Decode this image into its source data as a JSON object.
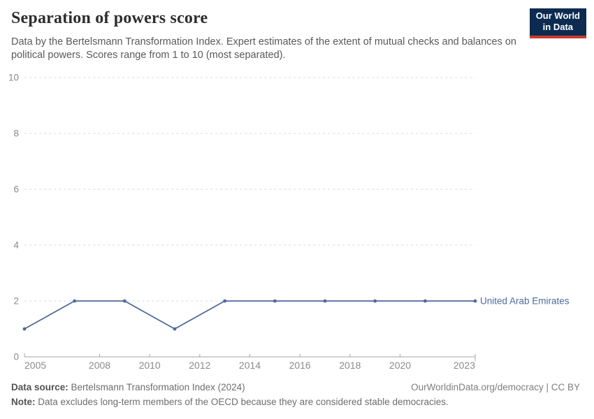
{
  "header": {
    "title": "Separation of powers score",
    "subtitle": "Data by the Bertelsmann Transformation Index. Expert estimates of the extent of mutual checks and balances on political powers. Scores range from 1 to 10 (most separated).",
    "logo": {
      "line1": "Our World",
      "line2": "in Data",
      "bg_color": "#0d2b50",
      "accent_color": "#c93c2d"
    }
  },
  "chart_data": {
    "type": "line",
    "title": "Separation of powers score",
    "x": [
      2005,
      2007,
      2009,
      2011,
      2013,
      2015,
      2017,
      2019,
      2021,
      2023
    ],
    "series": [
      {
        "name": "United Arab Emirates",
        "color": "#4c6a9c",
        "values": [
          1,
          2,
          2,
          1,
          2,
          2,
          2,
          2,
          2,
          2
        ]
      }
    ],
    "xlim": [
      2005,
      2023
    ],
    "ylim": [
      0,
      10
    ],
    "yticks": [
      0,
      2,
      4,
      6,
      8,
      10
    ],
    "xticks": [
      2005,
      2008,
      2010,
      2012,
      2014,
      2016,
      2018,
      2020,
      2023
    ],
    "grid": "horizontal dashed",
    "legend_position": "end of line",
    "axis_color": "#a3a3a3",
    "grid_color": "#dcdcdc",
    "tick_label_color": "#8b8b8b"
  },
  "footer": {
    "source_label": "Data source:",
    "source_value": "Bertelsmann Transformation Index (2024)",
    "rights": "OurWorldinData.org/democracy | CC BY",
    "note_label": "Note:",
    "note_value": "Data excludes long-term members of the OECD because they are considered stable democracies."
  }
}
